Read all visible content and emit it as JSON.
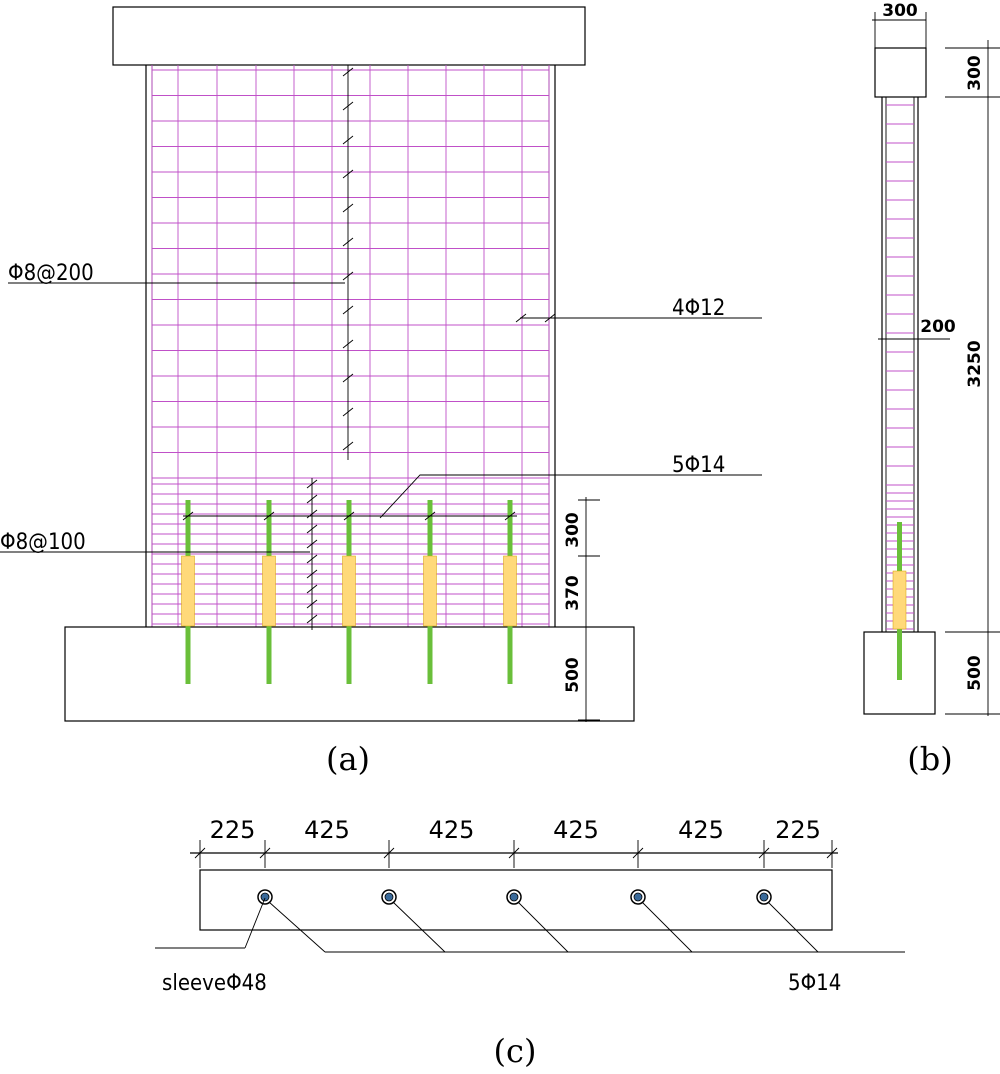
{
  "panel_a": {
    "caption": "(a)",
    "labels": {
      "web_bar": "Φ8@200",
      "boundary_bar": "4Φ12",
      "dowel_bar": "5Φ14",
      "stirrup_bar": "Φ8@100"
    },
    "dims": {
      "d1": "300",
      "d2": "370",
      "d3": "500"
    }
  },
  "panel_b": {
    "caption": "(b)",
    "dims": {
      "top_w": "300",
      "top_h": "300",
      "wall_t": "200",
      "height": "3250",
      "base": "500"
    }
  },
  "panel_c": {
    "caption": "(c)",
    "dims": [
      "225",
      "425",
      "425",
      "425",
      "425",
      "225"
    ],
    "labels": {
      "sleeve": "sleeveΦ48",
      "bars": "5Φ14"
    }
  },
  "colors": {
    "grid": "#c050c8",
    "dowel": "#6abf3a",
    "sleeve": "#ffd97a"
  }
}
